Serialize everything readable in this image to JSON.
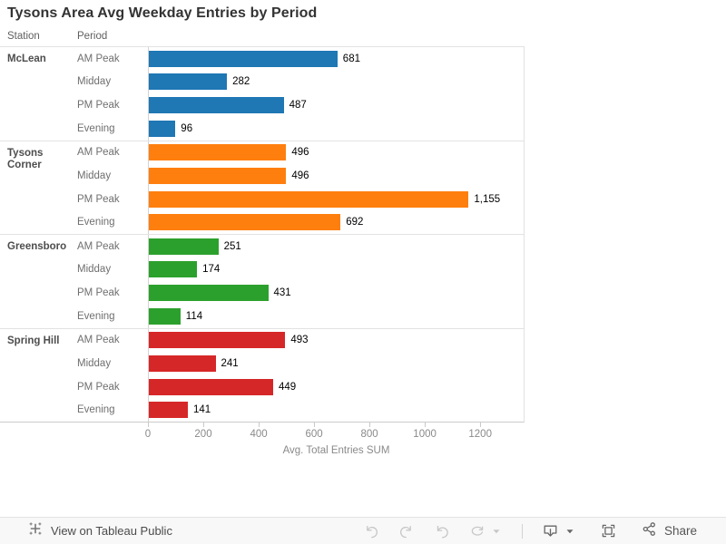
{
  "title": "Tysons Area Avg Weekday Entries by Period",
  "column_headers": {
    "station": "Station",
    "period": "Period"
  },
  "chart_data": {
    "type": "bar",
    "orientation": "horizontal",
    "title": "Tysons Area Avg Weekday Entries by Period",
    "xlabel": "Avg. Total Entries SUM",
    "x_ticks": [
      0,
      200,
      400,
      600,
      800,
      1000,
      1200
    ],
    "xlim": [
      0,
      1360
    ],
    "grid": false,
    "legend": "none",
    "periods": [
      "AM Peak",
      "Midday",
      "PM Peak",
      "Evening"
    ],
    "groups": [
      {
        "station": "McLean",
        "color": "#1f77b4",
        "values": [
          681,
          282,
          487,
          96
        ],
        "labels": [
          "681",
          "282",
          "487",
          "96"
        ]
      },
      {
        "station": "Tysons Corner",
        "color": "#ff7f0e",
        "values": [
          496,
          496,
          1155,
          692
        ],
        "labels": [
          "496",
          "496",
          "1,155",
          "692"
        ]
      },
      {
        "station": "Greensboro",
        "color": "#2ca02c",
        "values": [
          251,
          174,
          431,
          114
        ],
        "labels": [
          "251",
          "174",
          "431",
          "114"
        ]
      },
      {
        "station": "Spring Hill",
        "color": "#d62728",
        "values": [
          493,
          241,
          449,
          141
        ],
        "labels": [
          "493",
          "241",
          "449",
          "141"
        ]
      }
    ]
  },
  "toolbar": {
    "view_on_label": "View on Tableau Public",
    "share_label": "Share",
    "icons": [
      "tableau-logo-icon",
      "undo-icon",
      "redo-icon",
      "revert-icon",
      "refresh-icon",
      "caret-down-icon",
      "download-icon",
      "fullscreen-icon",
      "share-icon"
    ],
    "disabled_color": "#c7c7c7",
    "enabled_color": "#666666"
  }
}
